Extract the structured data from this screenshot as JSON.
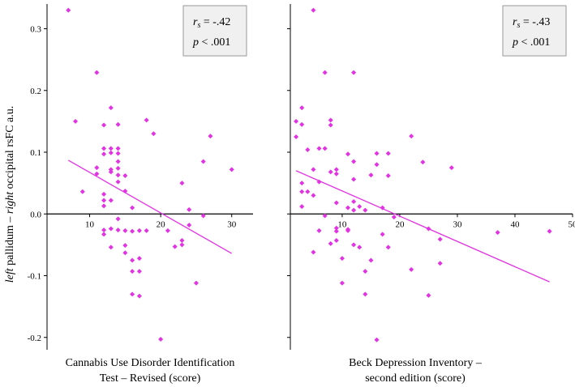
{
  "figure": {
    "ylabel_italic": "left",
    "ylabel_mid": " pallidum – ",
    "ylabel_italic2": "right",
    "ylabel_end": " occipital rsFC a.u."
  },
  "chart_data": [
    {
      "type": "scatter",
      "xlabel_lines": [
        "Cannabis Use Disorder Identification",
        "Test – Revised (score)"
      ],
      "ylabel": "left pallidum – right occipital rsFC a.u.",
      "ylim": [
        -0.22,
        0.34
      ],
      "xlim": [
        4,
        33
      ],
      "x_ticks": [
        10,
        20,
        30
      ],
      "y_ticks": [
        -0.2,
        -0.1,
        0.0,
        0.1,
        0.2,
        0.3
      ],
      "y_tick_labels": [
        "-0.2",
        "-0.1",
        "0.0",
        "0.1",
        "0.2",
        "0.3"
      ],
      "stat_rs": "= -.42",
      "stat_p": "< .001",
      "marker_color": "#e233e2",
      "regression": {
        "x": [
          7,
          30
        ],
        "y": [
          0.087,
          -0.064
        ]
      },
      "points": [
        {
          "x": 7,
          "y": 0.33
        },
        {
          "x": 8,
          "y": 0.15
        },
        {
          "x": 9,
          "y": 0.036
        },
        {
          "x": 11,
          "y": 0.229
        },
        {
          "x": 11,
          "y": 0.075
        },
        {
          "x": 11,
          "y": 0.065
        },
        {
          "x": 12,
          "y": 0.144
        },
        {
          "x": 12,
          "y": 0.106
        },
        {
          "x": 12,
          "y": 0.097
        },
        {
          "x": 12,
          "y": 0.032
        },
        {
          "x": 12,
          "y": 0.022
        },
        {
          "x": 12,
          "y": 0.013
        },
        {
          "x": 12,
          "y": -0.026
        },
        {
          "x": 12,
          "y": -0.033
        },
        {
          "x": 13,
          "y": 0.172
        },
        {
          "x": 13,
          "y": 0.106
        },
        {
          "x": 13,
          "y": 0.099
        },
        {
          "x": 13,
          "y": 0.072
        },
        {
          "x": 13,
          "y": 0.068
        },
        {
          "x": 13,
          "y": 0.022
        },
        {
          "x": 13,
          "y": -0.024
        },
        {
          "x": 13,
          "y": -0.054
        },
        {
          "x": 14,
          "y": 0.145
        },
        {
          "x": 14,
          "y": 0.106
        },
        {
          "x": 14,
          "y": 0.098
        },
        {
          "x": 14,
          "y": 0.085
        },
        {
          "x": 14,
          "y": 0.074
        },
        {
          "x": 14,
          "y": 0.063
        },
        {
          "x": 14,
          "y": 0.052
        },
        {
          "x": 14,
          "y": -0.008
        },
        {
          "x": 14,
          "y": -0.026
        },
        {
          "x": 15,
          "y": 0.062
        },
        {
          "x": 15,
          "y": 0.037
        },
        {
          "x": 15,
          "y": -0.027
        },
        {
          "x": 15,
          "y": -0.051
        },
        {
          "x": 15,
          "y": -0.063
        },
        {
          "x": 16,
          "y": 0.01
        },
        {
          "x": 16,
          "y": -0.028
        },
        {
          "x": 16,
          "y": -0.075
        },
        {
          "x": 16,
          "y": -0.093
        },
        {
          "x": 16,
          "y": -0.13
        },
        {
          "x": 17,
          "y": -0.027
        },
        {
          "x": 17,
          "y": -0.072
        },
        {
          "x": 17,
          "y": -0.093
        },
        {
          "x": 17,
          "y": -0.133
        },
        {
          "x": 18,
          "y": 0.152
        },
        {
          "x": 18,
          "y": -0.027
        },
        {
          "x": 19,
          "y": 0.13
        },
        {
          "x": 20,
          "y": -0.203
        },
        {
          "x": 21,
          "y": -0.027
        },
        {
          "x": 22,
          "y": -0.053
        },
        {
          "x": 23,
          "y": 0.05
        },
        {
          "x": 23,
          "y": -0.043
        },
        {
          "x": 23,
          "y": -0.05
        },
        {
          "x": 24,
          "y": 0.007
        },
        {
          "x": 24,
          "y": -0.018
        },
        {
          "x": 25,
          "y": -0.112
        },
        {
          "x": 26,
          "y": 0.085
        },
        {
          "x": 26,
          "y": -0.003
        },
        {
          "x": 27,
          "y": 0.126
        },
        {
          "x": 30,
          "y": 0.072
        }
      ]
    },
    {
      "type": "scatter",
      "xlabel_lines": [
        "Beck Depression Inventory –",
        "second edition (score)"
      ],
      "ylim": [
        -0.22,
        0.34
      ],
      "xlim": [
        1,
        50
      ],
      "x_ticks": [
        10,
        20,
        30,
        40,
        50
      ],
      "y_ticks": [
        -0.2,
        -0.1,
        0.0,
        0.1,
        0.2,
        0.3
      ],
      "stat_rs": "= -.43",
      "stat_p": "< .001",
      "marker_color": "#e233e2",
      "regression": {
        "x": [
          2,
          46
        ],
        "y": [
          0.07,
          -0.11
        ]
      },
      "points": [
        {
          "x": 2,
          "y": 0.15
        },
        {
          "x": 2,
          "y": 0.125
        },
        {
          "x": 3,
          "y": 0.172
        },
        {
          "x": 3,
          "y": 0.145
        },
        {
          "x": 3,
          "y": 0.05
        },
        {
          "x": 3,
          "y": 0.036
        },
        {
          "x": 3,
          "y": 0.012
        },
        {
          "x": 4,
          "y": 0.104
        },
        {
          "x": 4,
          "y": 0.036
        },
        {
          "x": 5,
          "y": 0.33
        },
        {
          "x": 5,
          "y": 0.072
        },
        {
          "x": 5,
          "y": 0.03
        },
        {
          "x": 5,
          "y": -0.062
        },
        {
          "x": 6,
          "y": 0.106
        },
        {
          "x": 6,
          "y": 0.052
        },
        {
          "x": 6,
          "y": -0.027
        },
        {
          "x": 7,
          "y": 0.229
        },
        {
          "x": 7,
          "y": 0.106
        },
        {
          "x": 7,
          "y": -0.003
        },
        {
          "x": 8,
          "y": 0.152
        },
        {
          "x": 8,
          "y": 0.144
        },
        {
          "x": 8,
          "y": 0.068
        },
        {
          "x": 8,
          "y": -0.048
        },
        {
          "x": 9,
          "y": 0.072
        },
        {
          "x": 9,
          "y": 0.065
        },
        {
          "x": 9,
          "y": 0.018
        },
        {
          "x": 9,
          "y": -0.023
        },
        {
          "x": 9,
          "y": -0.028
        },
        {
          "x": 9,
          "y": -0.043
        },
        {
          "x": 10,
          "y": -0.072
        },
        {
          "x": 10,
          "y": -0.112
        },
        {
          "x": 11,
          "y": 0.097
        },
        {
          "x": 11,
          "y": 0.01
        },
        {
          "x": 11,
          "y": -0.025
        },
        {
          "x": 11,
          "y": -0.027
        },
        {
          "x": 12,
          "y": 0.229
        },
        {
          "x": 12,
          "y": 0.085
        },
        {
          "x": 12,
          "y": 0.056
        },
        {
          "x": 12,
          "y": 0.02
        },
        {
          "x": 12,
          "y": 0.006
        },
        {
          "x": 12,
          "y": -0.05
        },
        {
          "x": 13,
          "y": 0.012
        },
        {
          "x": 13,
          "y": -0.054
        },
        {
          "x": 14,
          "y": 0.006
        },
        {
          "x": 14,
          "y": -0.093
        },
        {
          "x": 14,
          "y": -0.13
        },
        {
          "x": 15,
          "y": 0.063
        },
        {
          "x": 15,
          "y": -0.075
        },
        {
          "x": 16,
          "y": 0.098
        },
        {
          "x": 16,
          "y": 0.08
        },
        {
          "x": 16,
          "y": -0.204
        },
        {
          "x": 17,
          "y": 0.01
        },
        {
          "x": 17,
          "y": -0.033
        },
        {
          "x": 18,
          "y": 0.098
        },
        {
          "x": 18,
          "y": 0.062
        },
        {
          "x": 18,
          "y": -0.054
        },
        {
          "x": 19,
          "y": -0.005
        },
        {
          "x": 22,
          "y": 0.126
        },
        {
          "x": 22,
          "y": -0.09
        },
        {
          "x": 24,
          "y": 0.084
        },
        {
          "x": 25,
          "y": -0.024
        },
        {
          "x": 25,
          "y": -0.132
        },
        {
          "x": 27,
          "y": -0.041
        },
        {
          "x": 27,
          "y": -0.08
        },
        {
          "x": 29,
          "y": 0.075
        },
        {
          "x": 37,
          "y": -0.03
        },
        {
          "x": 46,
          "y": -0.028
        }
      ]
    }
  ]
}
